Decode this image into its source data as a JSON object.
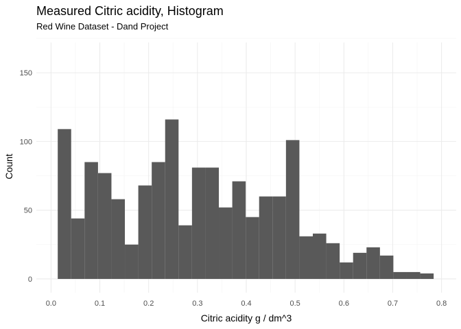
{
  "chart_data": {
    "type": "bar",
    "histogram": true,
    "title": "Measured Citric acidity, Histogram",
    "subtitle": "Red Wine Dataset - Dand Project",
    "xlabel": "Citric acidity g / dm^3",
    "ylabel": "Count",
    "xlim": [
      -0.03,
      0.83
    ],
    "ylim": [
      -10,
      172
    ],
    "x_ticks": [
      0.0,
      0.1,
      0.2,
      0.3,
      0.4,
      0.5,
      0.6,
      0.7,
      0.8
    ],
    "x_tick_labels": [
      "0.0",
      "0.1",
      "0.2",
      "0.3",
      "0.4",
      "0.5",
      "0.6",
      "0.7",
      "0.8"
    ],
    "y_ticks": [
      0,
      50,
      100,
      150
    ],
    "y_tick_labels": [
      "0",
      "50",
      "100",
      "150"
    ],
    "grid": true,
    "bar_color": "#595959",
    "bin_width": 0.0275,
    "bins_start": [
      0.0138,
      0.0413,
      0.0688,
      0.0963,
      0.1238,
      0.1513,
      0.1788,
      0.2063,
      0.2338,
      0.2613,
      0.2888,
      0.3163,
      0.3438,
      0.3713,
      0.3988,
      0.4263,
      0.4538,
      0.4813,
      0.5088,
      0.5363,
      0.5638,
      0.5913,
      0.6188,
      0.6463,
      0.6738,
      0.7013,
      0.7288,
      0.7563
    ],
    "values": [
      109,
      44,
      85,
      77,
      58,
      25,
      68,
      85,
      116,
      39,
      81,
      81,
      52,
      71,
      45,
      60,
      60,
      101,
      31,
      33,
      26,
      12,
      19,
      23,
      17,
      5,
      5,
      4
    ]
  }
}
